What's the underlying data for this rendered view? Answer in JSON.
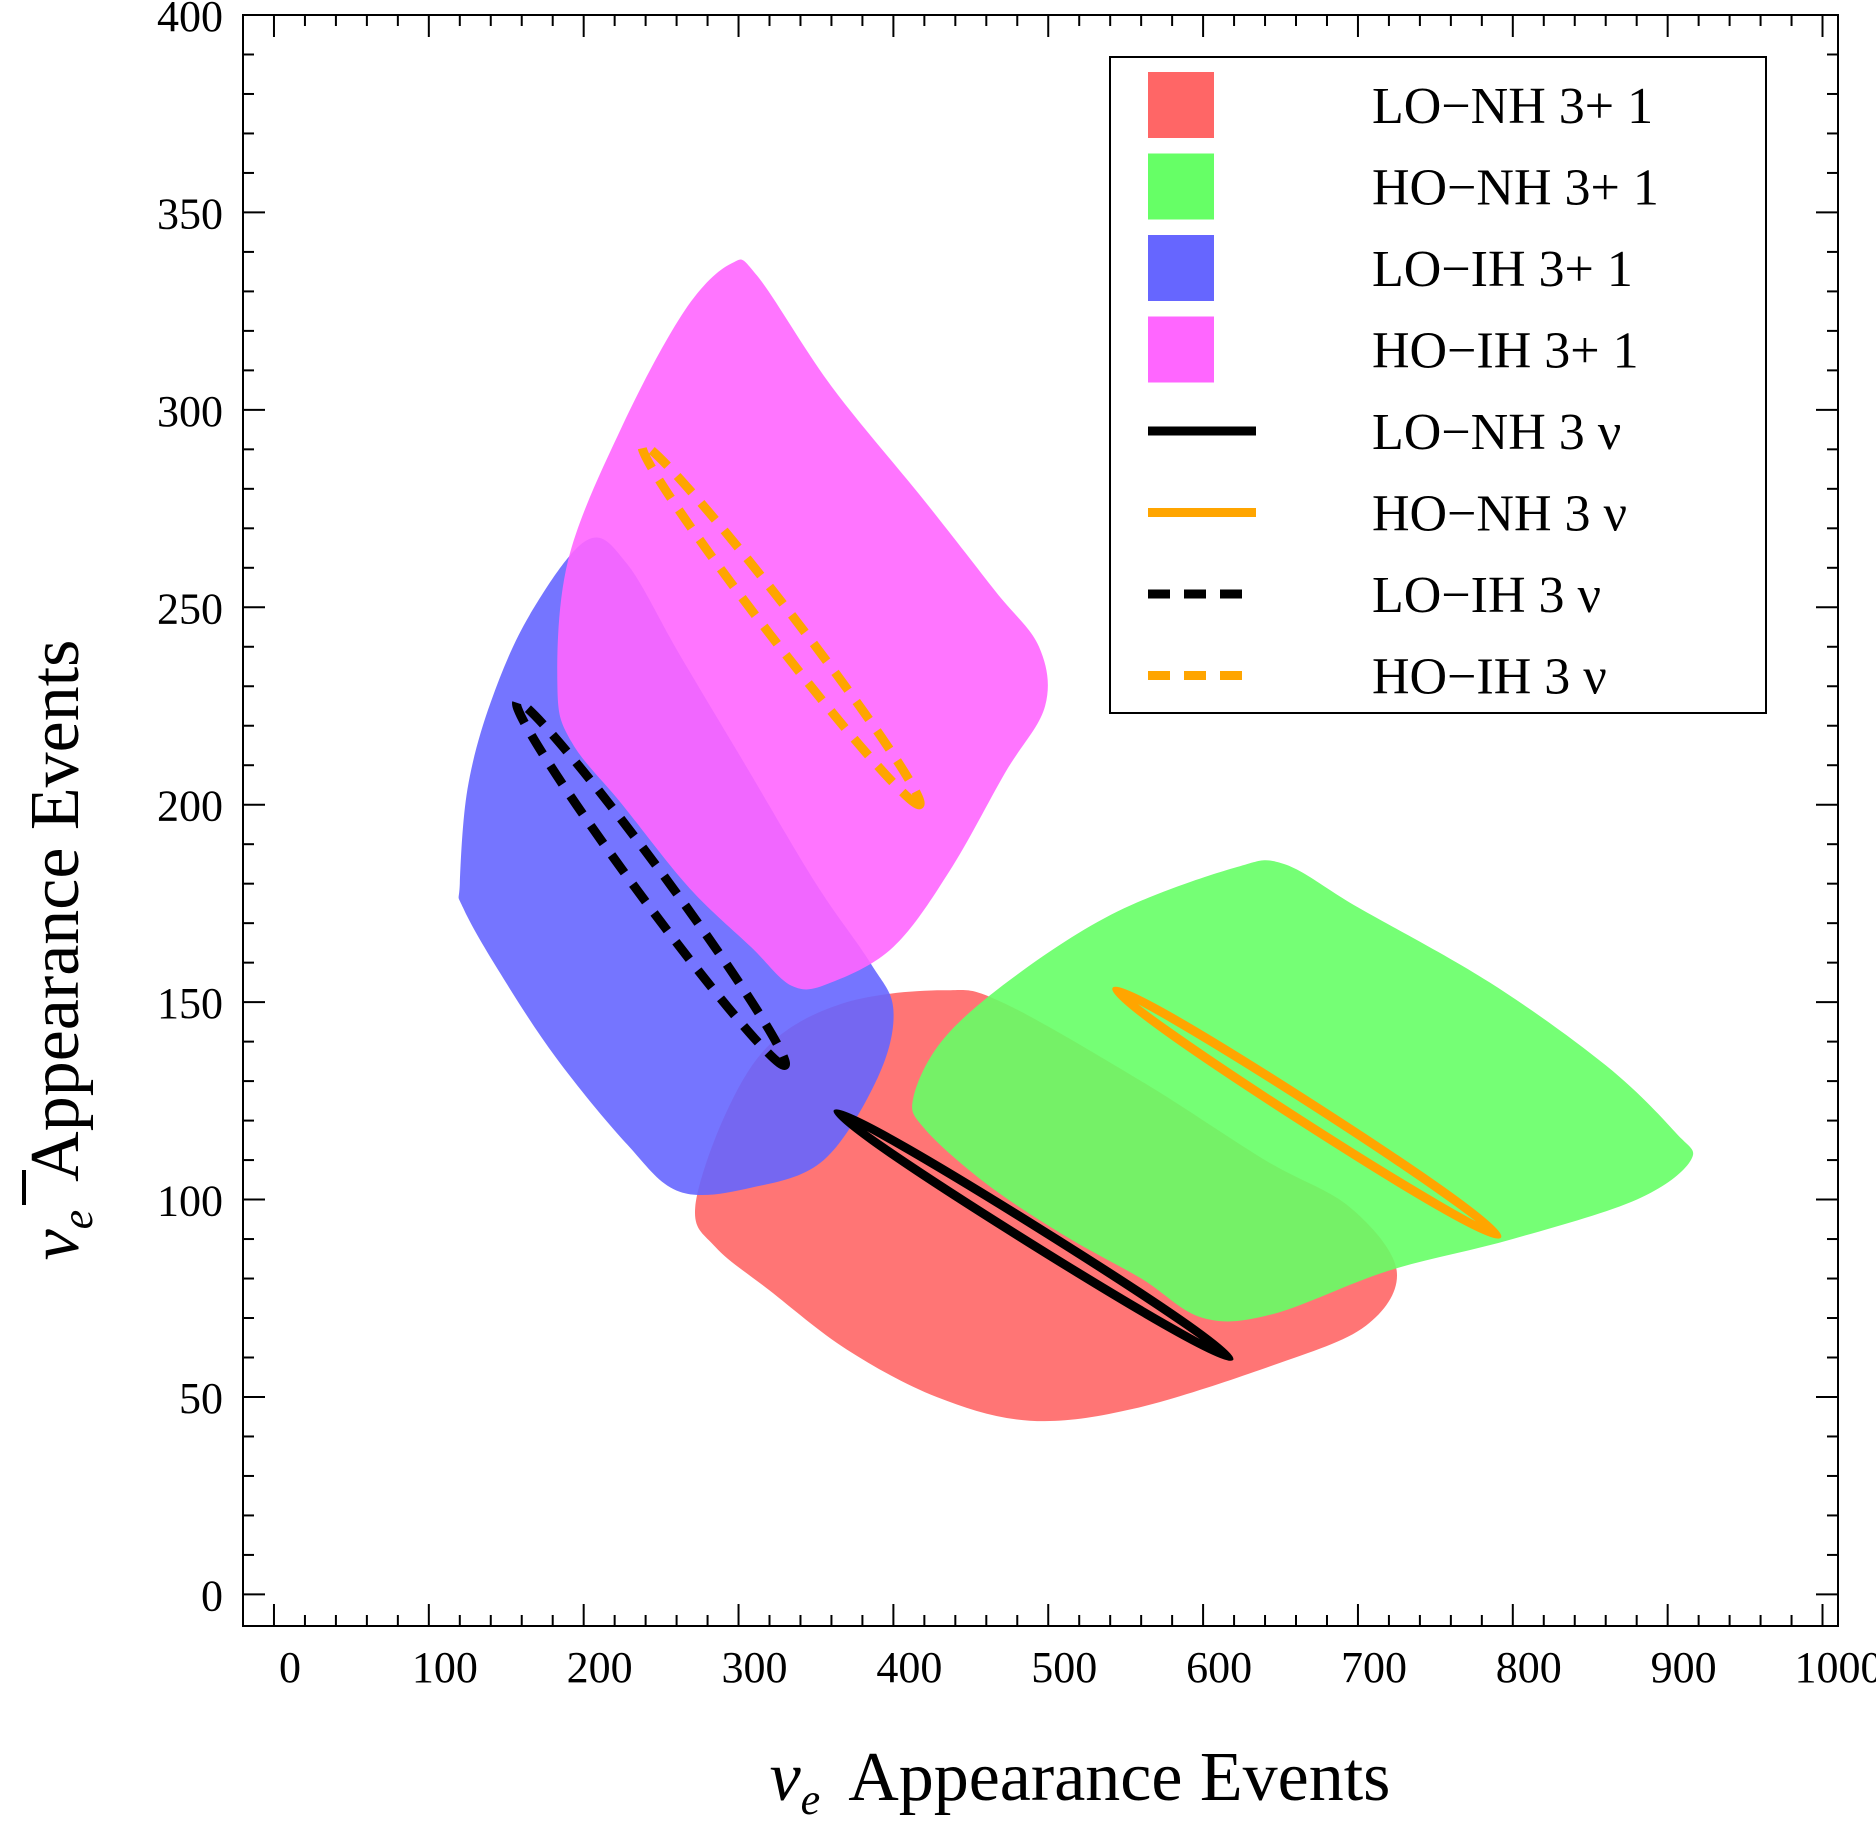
{
  "chart_data": {
    "type": "area",
    "title": "",
    "xlabel": "Appearance Events",
    "xlabel_symbol": "ν",
    "xlabel_subscript": "e",
    "ylabel": "Appearance Events",
    "ylabel_symbol": "ν",
    "ylabel_subscript": "e",
    "ylabel_overbar": true,
    "xlim": [
      -20,
      1010
    ],
    "ylim": [
      -8,
      400
    ],
    "xticks": [
      0,
      100,
      200,
      300,
      400,
      500,
      600,
      700,
      800,
      900,
      1000
    ],
    "yticks": [
      0,
      50,
      100,
      150,
      200,
      250,
      300,
      350,
      400
    ],
    "legend_position": "top-right",
    "regions": [
      {
        "name": "LO-NH 3+1",
        "label": "LO−NH 3+ 1",
        "color": "#ff6666",
        "points": [
          [
            272,
            98
          ],
          [
            292,
            122
          ],
          [
            322,
            140
          ],
          [
            370,
            150
          ],
          [
            432,
            153
          ],
          [
            470,
            150
          ],
          [
            560,
            130
          ],
          [
            640,
            110
          ],
          [
            695,
            98
          ],
          [
            725,
            82
          ],
          [
            705,
            68
          ],
          [
            645,
            58
          ],
          [
            555,
            47
          ],
          [
            488,
            44
          ],
          [
            428,
            50
          ],
          [
            370,
            62
          ],
          [
            320,
            77
          ],
          [
            285,
            88
          ]
        ]
      },
      {
        "name": "HO-NH 3+1",
        "label": "HO−NH 3+ 1",
        "color": "#66ff66",
        "points": [
          [
            413,
            126
          ],
          [
            433,
            141
          ],
          [
            480,
            157
          ],
          [
            545,
            173
          ],
          [
            620,
            184
          ],
          [
            652,
            185
          ],
          [
            700,
            174
          ],
          [
            785,
            155
          ],
          [
            860,
            134
          ],
          [
            905,
            117
          ],
          [
            915,
            110
          ],
          [
            880,
            100
          ],
          [
            800,
            90
          ],
          [
            720,
            82
          ],
          [
            645,
            71
          ],
          [
            600,
            70
          ],
          [
            560,
            80
          ],
          [
            510,
            91
          ],
          [
            460,
            104
          ],
          [
            420,
            118
          ]
        ]
      },
      {
        "name": "LO-IH 3+1",
        "label": "LO−IH 3+ 1",
        "color": "#6666ff",
        "points": [
          [
            120,
            180
          ],
          [
            125,
            204
          ],
          [
            140,
            226
          ],
          [
            165,
            248
          ],
          [
            202,
            267
          ],
          [
            228,
            261
          ],
          [
            262,
            238
          ],
          [
            303,
            211
          ],
          [
            350,
            180
          ],
          [
            385,
            160
          ],
          [
            400,
            148
          ],
          [
            390,
            131
          ],
          [
            355,
            110
          ],
          [
            308,
            103
          ],
          [
            262,
            102
          ],
          [
            228,
            114
          ],
          [
            182,
            136
          ],
          [
            145,
            158
          ],
          [
            122,
            174
          ]
        ]
      },
      {
        "name": "HO-IH 3+1",
        "label": "HO−IH 3+ 1",
        "color": "#ff66ff",
        "points": [
          [
            183,
            230
          ],
          [
            190,
            262
          ],
          [
            225,
            296
          ],
          [
            265,
            325
          ],
          [
            295,
            337
          ],
          [
            312,
            334
          ],
          [
            360,
            306
          ],
          [
            420,
            277
          ],
          [
            466,
            254
          ],
          [
            494,
            240
          ],
          [
            498,
            225
          ],
          [
            472,
            208
          ],
          [
            436,
            183
          ],
          [
            400,
            164
          ],
          [
            360,
            155
          ],
          [
            335,
            154
          ],
          [
            308,
            164
          ],
          [
            268,
            179
          ],
          [
            225,
            200
          ],
          [
            192,
            216
          ]
        ]
      }
    ],
    "ellipses": [
      {
        "name": "LO-NH 3ν",
        "label": "LO−NH 3 ν",
        "color": "#000000",
        "dashed": false,
        "p1": [
          364,
          122
        ],
        "p2": [
          617,
          60
        ],
        "half_width": 8.6
      },
      {
        "name": "HO-NH 3ν",
        "label": "HO−NH 3 ν",
        "color": "#ffa500",
        "dashed": false,
        "p1": [
          544,
          153
        ],
        "p2": [
          790,
          91
        ],
        "half_width": 9.8
      },
      {
        "name": "LO-IH 3ν",
        "label": "LO−IH 3 ν",
        "color": "#000000",
        "dashed": true,
        "p1": [
          157,
          226
        ],
        "p2": [
          330,
          134
        ],
        "half_width": 15.0
      },
      {
        "name": "HO-IH 3ν",
        "label": "HO−IH 3 ν",
        "color": "#ffa500",
        "dashed": true,
        "p1": [
          238,
          291
        ],
        "p2": [
          417,
          200
        ],
        "half_width": 14.5
      }
    ]
  }
}
